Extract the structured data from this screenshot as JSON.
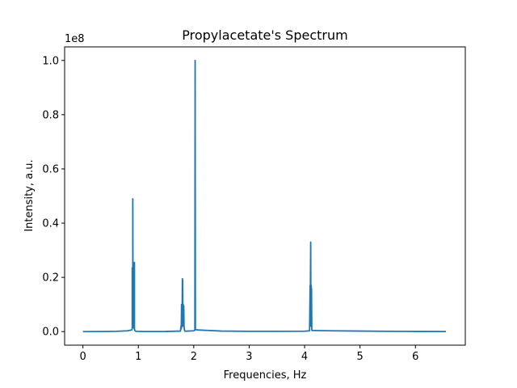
{
  "chart_data": {
    "type": "line",
    "title": "Propylacetate's Spectrum",
    "xlabel": "Frequencies, Hz",
    "ylabel": "Intensity, a.u.",
    "offset_label": "1e8",
    "xlim": [
      -0.33,
      6.9
    ],
    "ylim": [
      -0.05,
      1.05
    ],
    "grid": false,
    "x_ticks": [
      0,
      1,
      2,
      3,
      4,
      5,
      6
    ],
    "x_tick_labels": [
      "0",
      "1",
      "2",
      "3",
      "4",
      "5",
      "6"
    ],
    "y_ticks": [
      0.0,
      0.2,
      0.4,
      0.6,
      0.8,
      1.0
    ],
    "y_tick_labels": [
      "0.0",
      "0.2",
      "0.4",
      "0.6",
      "0.8",
      "1.0"
    ],
    "line_color": "#1f77b4",
    "series": [
      {
        "x": [
          0,
          0.3,
          0.6,
          0.8,
          0.88,
          0.89,
          0.89,
          0.9,
          0.9,
          0.905,
          0.91,
          0.91,
          0.92,
          0.925,
          0.93,
          0.93,
          0.94,
          0.96,
          1.1,
          1.5,
          1.76,
          1.77,
          1.775,
          1.78,
          1.78,
          1.785,
          1.79,
          1.795,
          1.8,
          1.8,
          1.805,
          1.81,
          1.815,
          1.82,
          1.825,
          1.83,
          1.84,
          1.9,
          2.0,
          2.02,
          2.025,
          2.03,
          2.035,
          2.045,
          2.06,
          2.5,
          3.0,
          3.5,
          4.0,
          4.09,
          4.1,
          4.1,
          4.11,
          4.115,
          4.12,
          4.12,
          4.125,
          4.13,
          4.13,
          4.14,
          4.16,
          4.5,
          5.0,
          5.5,
          6.0,
          6.55
        ],
        "y": [
          0.0,
          0.0002,
          0.001,
          0.003,
          0.006,
          0.01,
          0.235,
          0.02,
          0.49,
          0.015,
          0.03,
          0.25,
          0.015,
          0.01,
          0.255,
          0.01,
          0.003,
          0.001,
          0.0003,
          0.0005,
          0.002,
          0.02,
          0.01,
          0.1,
          0.015,
          0.08,
          0.02,
          0.195,
          0.03,
          0.19,
          0.02,
          0.1,
          0.02,
          0.095,
          0.02,
          0.008,
          0.0015,
          0.002,
          0.003,
          0.005,
          1.0,
          0.01,
          0.008,
          0.007,
          0.006,
          0.002,
          0.001,
          0.001,
          0.0015,
          0.003,
          0.17,
          0.02,
          0.33,
          0.02,
          0.17,
          0.02,
          0.16,
          0.02,
          0.005,
          0.004,
          0.004,
          0.003,
          0.002,
          0.001,
          0.0005,
          0.0003
        ]
      }
    ]
  }
}
